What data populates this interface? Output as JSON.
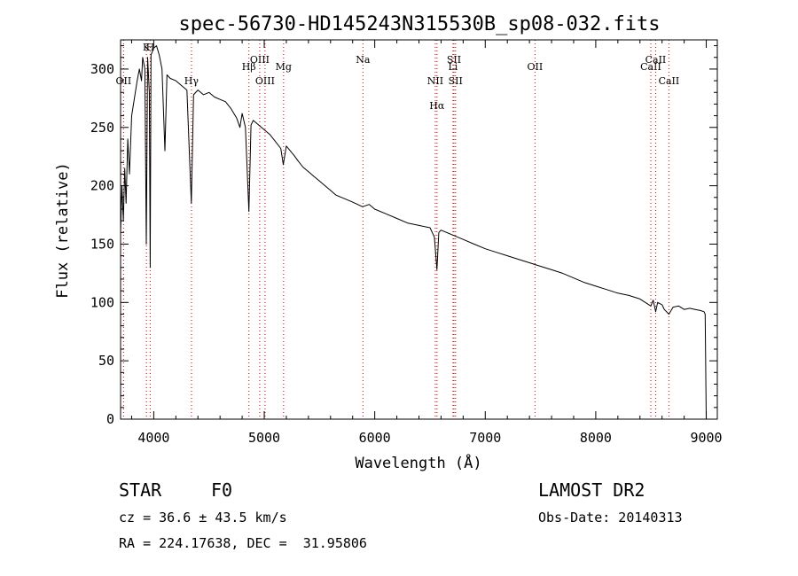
{
  "chart_data": {
    "type": "line",
    "title": "spec-56730-HD145243N315530B_sp08-032.fits",
    "xlabel": "Wavelength (Å)",
    "ylabel": "Flux (relative)",
    "xlim": [
      3700,
      9100
    ],
    "ylim": [
      0,
      325
    ],
    "x_ticks": [
      4000,
      5000,
      6000,
      7000,
      8000,
      9000
    ],
    "x_tick_labels": [
      "4000",
      "5000",
      "6000",
      "7000",
      "8000",
      "9000"
    ],
    "y_ticks": [
      0,
      50,
      100,
      150,
      200,
      250,
      300
    ],
    "y_tick_labels": [
      "0",
      "50",
      "100",
      "150",
      "200",
      "250",
      "300"
    ],
    "grid": false,
    "series": [
      {
        "color": "#000000",
        "x": [
          3700,
          3712,
          3725,
          3738,
          3750,
          3765,
          3780,
          3800,
          3825,
          3850,
          3870,
          3889,
          3900,
          3920,
          3933,
          3945,
          3960,
          3968,
          3975,
          4000,
          4025,
          4050,
          4075,
          4101,
          4120,
          4150,
          4200,
          4250,
          4300,
          4340,
          4360,
          4400,
          4450,
          4500,
          4550,
          4600,
          4650,
          4700,
          4750,
          4780,
          4800,
          4830,
          4861,
          4880,
          4900,
          4950,
          5000,
          5050,
          5100,
          5150,
          5172,
          5200,
          5270,
          5300,
          5350,
          5400,
          5450,
          5500,
          5550,
          5600,
          5650,
          5700,
          5800,
          5890,
          5950,
          6000,
          6100,
          6200,
          6300,
          6400,
          6500,
          6540,
          6563,
          6580,
          6600,
          6700,
          6800,
          6900,
          7000,
          7100,
          7200,
          7300,
          7400,
          7500,
          7600,
          7700,
          7800,
          7900,
          8000,
          8100,
          8200,
          8300,
          8400,
          8498,
          8520,
          8542,
          8560,
          8600,
          8620,
          8662,
          8700,
          8750,
          8800,
          8850,
          8900,
          8950,
          8980,
          8990,
          9000
        ],
        "y": [
          160,
          200,
          170,
          215,
          185,
          240,
          210,
          260,
          275,
          290,
          300,
          290,
          310,
          300,
          150,
          310,
          280,
          130,
          312,
          318,
          320,
          312,
          300,
          230,
          295,
          292,
          290,
          286,
          282,
          185,
          278,
          282,
          278,
          280,
          276,
          274,
          272,
          266,
          258,
          250,
          262,
          250,
          178,
          252,
          256,
          252,
          248,
          244,
          238,
          232,
          218,
          234,
          226,
          222,
          216,
          212,
          208,
          204,
          200,
          196,
          192,
          190,
          186,
          182,
          184,
          180,
          176,
          172,
          168,
          166,
          164,
          156,
          128,
          160,
          162,
          158,
          154,
          150,
          146,
          143,
          140,
          137,
          134,
          131,
          128,
          125,
          121,
          117,
          114,
          111,
          108,
          106,
          103,
          97,
          102,
          92,
          100,
          98,
          94,
          90,
          96,
          97,
          94,
          95,
          94,
          93,
          92,
          90,
          0
        ]
      }
    ],
    "line_markers": [
      {
        "x": 3727,
        "label": "OII",
        "row": 3,
        "color": "#cc0000"
      },
      {
        "x": 3934,
        "label": "K",
        "row": 0,
        "color": "#cc0000"
      },
      {
        "x": 3968,
        "label": "H",
        "row": 0,
        "color": "#cc0000"
      },
      {
        "x": 4341,
        "label": "Hγ",
        "row": 3,
        "color": "#cc0000"
      },
      {
        "x": 4861,
        "label": "Hβ",
        "row": 2,
        "color": "#cc0000"
      },
      {
        "x": 4959,
        "label": "OIII",
        "row": 1,
        "color": "#cc0000"
      },
      {
        "x": 5007,
        "label": "OIII",
        "row": 3,
        "color": "#cc0000"
      },
      {
        "x": 5175,
        "label": "Mg",
        "row": 2,
        "color": "#cc0000"
      },
      {
        "x": 5893,
        "label": "Na",
        "row": 1,
        "color": "#cc0000"
      },
      {
        "x": 6548,
        "label": "NII",
        "row": 3,
        "color": "#cc0000"
      },
      {
        "x": 6563,
        "label": "Hα",
        "row": 4,
        "color": "#cc0000"
      },
      {
        "x": 6708,
        "label": "Li",
        "row": 2,
        "color": "#cc0000"
      },
      {
        "x": 6717,
        "label": "SII",
        "row": 1,
        "color": "#cc0000"
      },
      {
        "x": 6731,
        "label": "SII",
        "row": 3,
        "color": "#cc0000"
      },
      {
        "x": 7450,
        "label": "OII",
        "row": 2,
        "color": "#cc0000"
      },
      {
        "x": 8498,
        "label": "CaII",
        "row": 2,
        "color": "#cc0000"
      },
      {
        "x": 8542,
        "label": "CaII",
        "row": 1,
        "color": "#cc0000"
      },
      {
        "x": 8662,
        "label": "CaII",
        "row": 3,
        "color": "#cc0000"
      }
    ]
  },
  "info": {
    "object_class": "STAR",
    "subclass": "F0",
    "survey": "LAMOST DR2",
    "redshift": "cz = 36.6 ± 43.5 km/s",
    "obs_date": "Obs-Date: 20140313",
    "coords": "RA = 224.17638, DEC =  31.95806"
  }
}
